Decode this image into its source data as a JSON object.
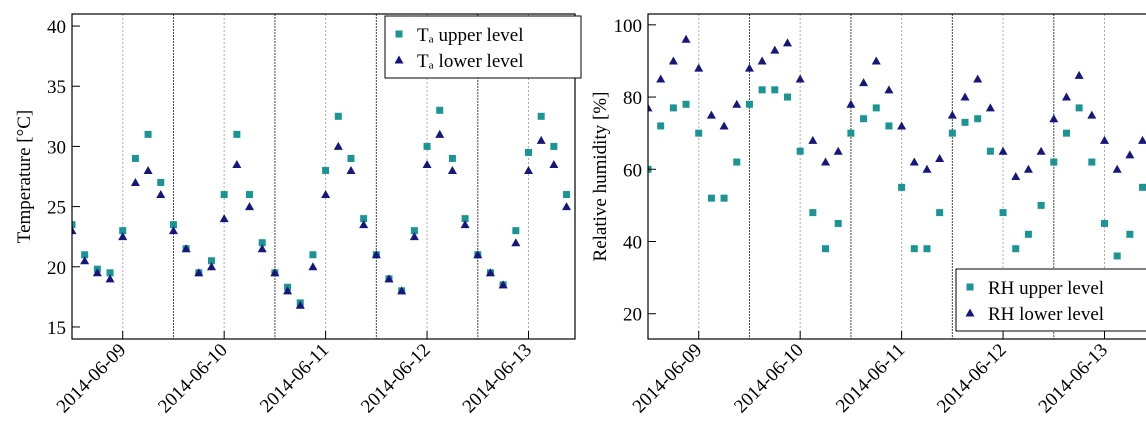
{
  "chart_data": [
    {
      "type": "scatter",
      "ylabel": "Temperature [°C]",
      "x": [
        "2014-06-08T12:00",
        "2014-06-08T15:00",
        "2014-06-08T18:00",
        "2014-06-08T21:00",
        "2014-06-09T00:00",
        "2014-06-09T03:00",
        "2014-06-09T06:00",
        "2014-06-09T09:00",
        "2014-06-09T12:00",
        "2014-06-09T15:00",
        "2014-06-09T18:00",
        "2014-06-09T21:00",
        "2014-06-10T00:00",
        "2014-06-10T03:00",
        "2014-06-10T06:00",
        "2014-06-10T09:00",
        "2014-06-10T12:00",
        "2014-06-10T15:00",
        "2014-06-10T18:00",
        "2014-06-10T21:00",
        "2014-06-11T00:00",
        "2014-06-11T03:00",
        "2014-06-11T06:00",
        "2014-06-11T09:00",
        "2014-06-11T12:00",
        "2014-06-11T15:00",
        "2014-06-11T18:00",
        "2014-06-11T21:00",
        "2014-06-12T00:00",
        "2014-06-12T03:00",
        "2014-06-12T06:00",
        "2014-06-12T09:00",
        "2014-06-12T12:00",
        "2014-06-12T15:00",
        "2014-06-12T18:00",
        "2014-06-12T21:00",
        "2014-06-13T00:00",
        "2014-06-13T03:00",
        "2014-06-13T06:00",
        "2014-06-13T09:00"
      ],
      "series": [
        {
          "name": "Tₐ upper level",
          "color": "#1a9593",
          "marker": "square",
          "values": [
            23.5,
            21,
            19.8,
            19.5,
            23,
            29,
            31,
            27,
            23.5,
            21.5,
            19.5,
            20.5,
            26,
            31,
            26,
            22,
            19.5,
            18.3,
            17,
            21,
            28,
            32.5,
            29,
            24,
            21,
            19,
            18,
            23,
            30,
            33,
            29,
            24,
            21,
            19.5,
            18.5,
            23,
            29.5,
            32.5,
            30,
            26
          ]
        },
        {
          "name": "Tₐ lower level",
          "color": "#16167c",
          "marker": "triangle",
          "values": [
            23,
            20.5,
            19.5,
            19,
            22.5,
            27,
            28,
            26,
            23,
            21.5,
            19.5,
            20,
            24,
            28.5,
            25,
            21.5,
            19.5,
            18,
            16.8,
            20,
            26,
            30,
            28,
            23.5,
            21,
            19,
            18,
            22.5,
            28.5,
            31,
            28,
            23.5,
            21,
            19.5,
            18.5,
            22,
            28,
            30.5,
            28.5,
            25
          ]
        }
      ],
      "xlim": [
        "2014-06-08T12:00",
        "2014-06-13T11:00"
      ],
      "xticks": [
        "2014-06-09",
        "2014-06-10",
        "2014-06-11",
        "2014-06-12",
        "2014-06-13"
      ],
      "xminorticks": [
        "2014-06-09T12:00",
        "2014-06-10T12:00",
        "2014-06-11T12:00",
        "2014-06-12T12:00"
      ],
      "ylim": [
        14,
        41
      ],
      "yticks": [
        15,
        20,
        25,
        30,
        35,
        40
      ],
      "grid": true,
      "legend": "upper right"
    },
    {
      "type": "scatter",
      "ylabel": "Relative humidity [%]",
      "x": [
        "2014-06-08T12:00",
        "2014-06-08T15:00",
        "2014-06-08T18:00",
        "2014-06-08T21:00",
        "2014-06-09T00:00",
        "2014-06-09T03:00",
        "2014-06-09T06:00",
        "2014-06-09T09:00",
        "2014-06-09T12:00",
        "2014-06-09T15:00",
        "2014-06-09T18:00",
        "2014-06-09T21:00",
        "2014-06-10T00:00",
        "2014-06-10T03:00",
        "2014-06-10T06:00",
        "2014-06-10T09:00",
        "2014-06-10T12:00",
        "2014-06-10T15:00",
        "2014-06-10T18:00",
        "2014-06-10T21:00",
        "2014-06-11T00:00",
        "2014-06-11T03:00",
        "2014-06-11T06:00",
        "2014-06-11T09:00",
        "2014-06-11T12:00",
        "2014-06-11T15:00",
        "2014-06-11T18:00",
        "2014-06-11T21:00",
        "2014-06-12T00:00",
        "2014-06-12T03:00",
        "2014-06-12T06:00",
        "2014-06-12T09:00",
        "2014-06-12T12:00",
        "2014-06-12T15:00",
        "2014-06-12T18:00",
        "2014-06-12T21:00",
        "2014-06-13T00:00",
        "2014-06-13T03:00",
        "2014-06-13T06:00",
        "2014-06-13T09:00"
      ],
      "series": [
        {
          "name": "RH upper level",
          "color": "#1a9593",
          "marker": "square",
          "values": [
            60,
            72,
            77,
            78,
            70,
            52,
            52,
            62,
            78,
            82,
            82,
            80,
            65,
            48,
            38,
            45,
            70,
            74,
            77,
            72,
            55,
            38,
            38,
            48,
            70,
            73,
            74,
            65,
            48,
            38,
            42,
            50,
            62,
            70,
            77,
            62,
            45,
            36,
            42,
            55
          ]
        },
        {
          "name": "RH lower level",
          "color": "#16167c",
          "marker": "triangle",
          "values": [
            77,
            85,
            90,
            96,
            88,
            75,
            72,
            78,
            88,
            90,
            93,
            95,
            85,
            68,
            62,
            65,
            78,
            84,
            90,
            82,
            72,
            62,
            60,
            63,
            75,
            80,
            85,
            77,
            65,
            58,
            60,
            65,
            74,
            80,
            86,
            75,
            68,
            60,
            64,
            68
          ]
        }
      ],
      "xlim": [
        "2014-06-08T12:00",
        "2014-06-13T11:00"
      ],
      "xticks": [
        "2014-06-09",
        "2014-06-10",
        "2014-06-11",
        "2014-06-12",
        "2014-06-13"
      ],
      "xminorticks": [
        "2014-06-09T12:00",
        "2014-06-10T12:00",
        "2014-06-11T12:00",
        "2014-06-12T12:00"
      ],
      "ylim": [
        13,
        103
      ],
      "yticks": [
        20,
        40,
        60,
        80,
        100
      ],
      "grid": true,
      "legend": "lower right"
    }
  ]
}
